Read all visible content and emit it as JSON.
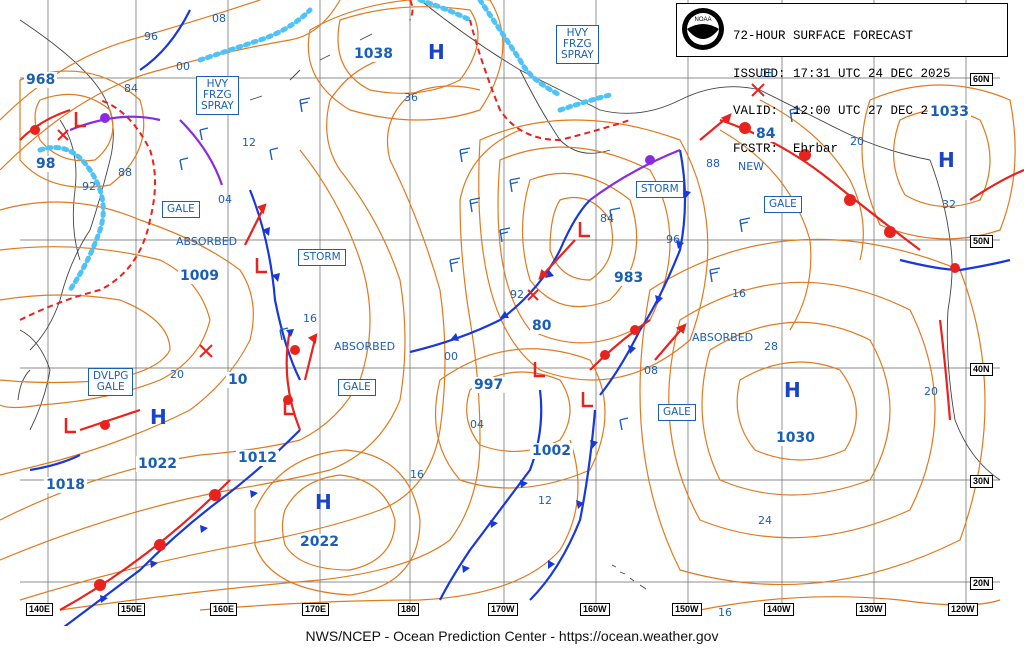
{
  "header": {
    "line1": "72-HOUR SURFACE FORECAST",
    "line2": "ISSUED: 17:31 UTC 24 DEC 2025",
    "line3": "VALID:  12:00 UTC 27 DEC 2025",
    "line4": "FCSTR:  Ehrbar",
    "logo_text": "NOAA"
  },
  "footer": "NWS/NCEP - Ocean Prediction Center - https://ocean.weather.gov",
  "lon_labels": [
    "140E",
    "150E",
    "160E",
    "170E",
    "180",
    "170W",
    "160W",
    "150W",
    "140W",
    "130W",
    "120W"
  ],
  "lat_labels": [
    "60N",
    "50N",
    "40N",
    "30N",
    "20N"
  ],
  "boxed_labels": {
    "frzg_spray_west": "HVY\nFRZG\nSPRAY",
    "frzg_spray_east": "HVY\nFRZG\nSPRAY",
    "gale_1": "GALE",
    "storm_1": "STORM",
    "dvlpg_gale": "DVLPG\nGALE",
    "gale_2": "GALE",
    "storm_2": "STORM",
    "gale_3": "GALE",
    "gale_4": "GALE"
  },
  "pressure_labels": {
    "p968": "968",
    "p98": "98",
    "p1009": "1009",
    "p10": "10",
    "p1038": "1038",
    "p1018": "1018",
    "p1022": "1022",
    "p1012": "1012",
    "p2022": "2022",
    "p997": "997",
    "p1002": "1002",
    "p80": "80",
    "p983": "983",
    "p84": "84",
    "p1033": "1033",
    "p1030": "1030"
  },
  "text_labels": {
    "absorbed_1": "ABSORBED",
    "absorbed_2": "ABSORBED",
    "absorbed_3": "ABSORBED",
    "new": "NEW"
  },
  "isobar_values": [
    "96",
    "08",
    "84",
    "00",
    "92",
    "88",
    "04",
    "12",
    "36",
    "16",
    "20",
    "92",
    "84",
    "00",
    "96",
    "88",
    "16",
    "28",
    "20",
    "32",
    "08",
    "04",
    "16",
    "12",
    "24",
    "20",
    "16",
    "08"
  ],
  "symbols": {
    "high": "H",
    "low": "L"
  },
  "colors": {
    "isobar": "#e07a1f",
    "label_blue": "#1a5fb4",
    "cold_front": "#1838d8",
    "warm_front": "#e8231e",
    "occluded_front": "#8a2be2",
    "ice": "#4fc3f7",
    "grid": "#555555"
  }
}
